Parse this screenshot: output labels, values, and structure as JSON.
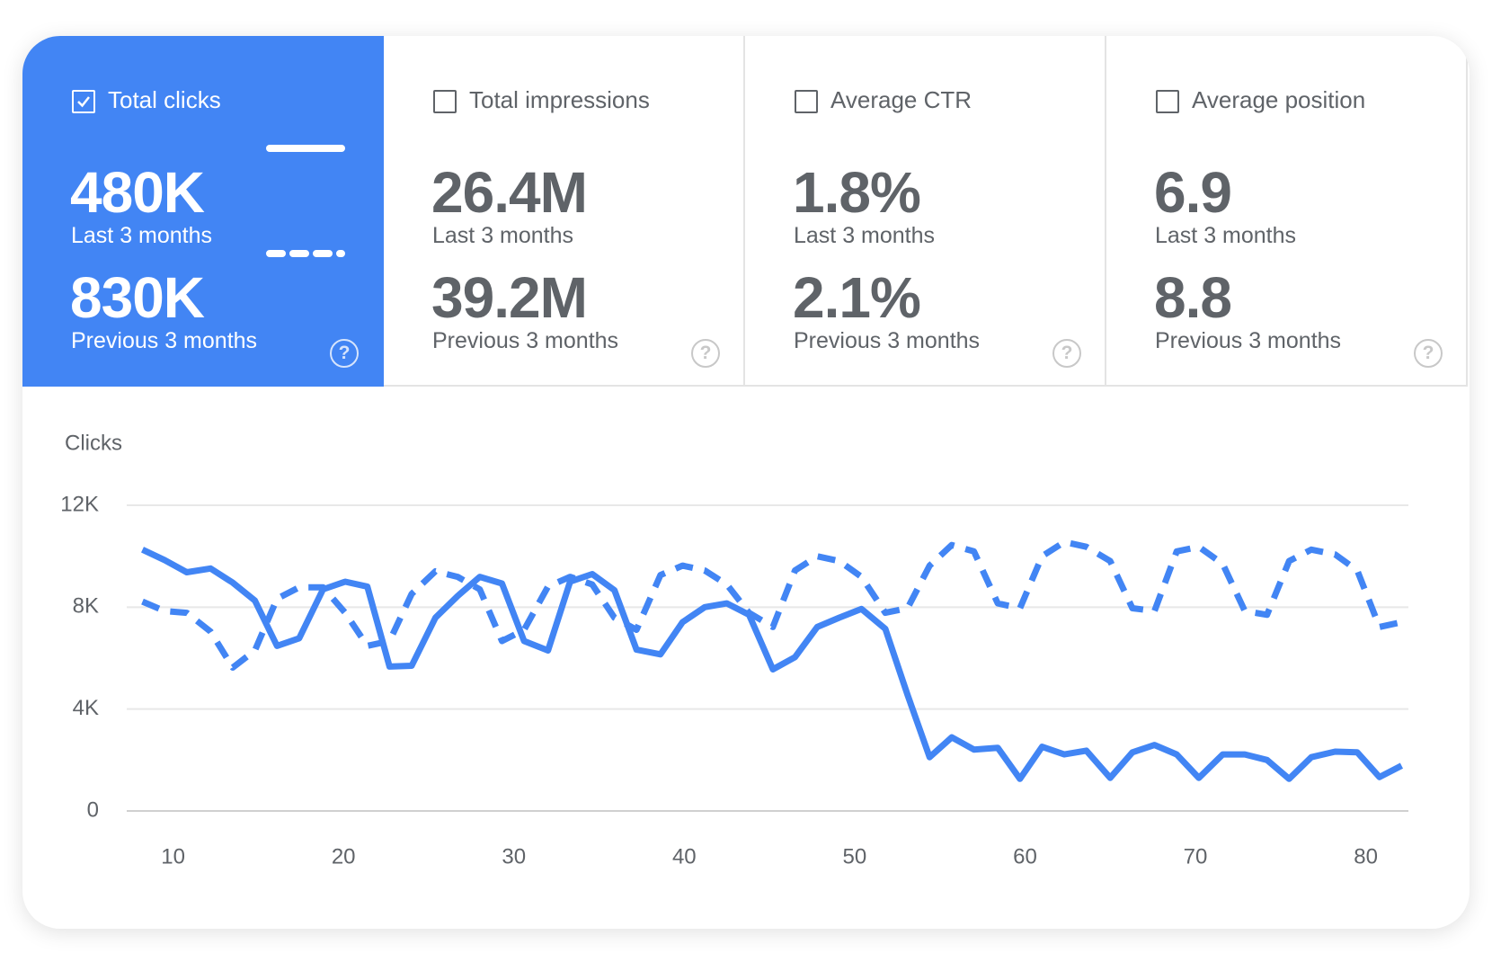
{
  "cards": [
    {
      "label": "Total clicks",
      "current": "480K",
      "current_label": "Last 3 months",
      "previous": "830K",
      "previous_label": "Previous 3 months",
      "selected": true
    },
    {
      "label": "Total impressions",
      "current": "26.4M",
      "current_label": "Last 3 months",
      "previous": "39.2M",
      "previous_label": "Previous 3 months",
      "selected": false
    },
    {
      "label": "Average CTR",
      "current": "1.8%",
      "current_label": "Last 3 months",
      "previous": "2.1%",
      "previous_label": "Previous 3 months",
      "selected": false
    },
    {
      "label": "Average position",
      "current": "6.9",
      "current_label": "Last 3 months",
      "previous": "8.8",
      "previous_label": "Previous 3 months",
      "selected": false
    }
  ],
  "chart_data": {
    "type": "line",
    "y_label": "Clicks",
    "x": [
      8.2,
      9.5,
      10.8,
      12.2,
      13.5,
      14.8,
      16.1,
      17.4,
      18.8,
      20.1,
      21.4,
      22.7,
      24.0,
      25.4,
      26.7,
      28.0,
      29.3,
      30.6,
      32.0,
      33.3,
      34.6,
      35.9,
      37.2,
      38.6,
      39.9,
      41.2,
      42.5,
      43.8,
      45.2,
      46.5,
      47.8,
      49.1,
      50.4,
      51.8,
      53.1,
      54.4,
      55.7,
      57.0,
      58.4,
      59.7,
      61.0,
      62.3,
      63.6,
      65.0,
      66.3,
      67.6,
      68.9,
      70.2,
      71.6,
      72.9,
      74.2,
      75.5,
      76.8,
      78.2,
      79.5,
      80.8,
      82.1
    ],
    "series": [
      {
        "color": "#4285f4",
        "dashed": false,
        "values": [
          10260,
          9850,
          9370,
          9520,
          8960,
          8260,
          6480,
          6780,
          8700,
          9000,
          8810,
          5670,
          5700,
          7590,
          8440,
          9190,
          8930,
          6670,
          6300,
          9000,
          9300,
          8670,
          6330,
          6150,
          7410,
          8000,
          8150,
          7700,
          5560,
          6040,
          7220,
          7590,
          7930,
          7150,
          4560,
          2110,
          2890,
          2410,
          2480,
          1260,
          2520,
          2220,
          2370,
          1300,
          2300,
          2590,
          2220,
          1300,
          2220,
          2220,
          2000,
          1260,
          2110,
          2330,
          2300,
          1330,
          1780
        ]
      },
      {
        "color": "#4285f4",
        "dashed": true,
        "values": [
          8220,
          7850,
          7780,
          7040,
          5630,
          6300,
          8330,
          8780,
          8780,
          7780,
          6480,
          6670,
          8520,
          9410,
          9190,
          8700,
          6670,
          7110,
          8810,
          9190,
          8890,
          7590,
          7110,
          9260,
          9630,
          9440,
          8890,
          7780,
          7220,
          9440,
          10000,
          9810,
          9190,
          7780,
          7960,
          9630,
          10440,
          10190,
          8150,
          7960,
          10000,
          10560,
          10370,
          9810,
          7960,
          7850,
          10190,
          10370,
          9700,
          7850,
          7700,
          9810,
          10260,
          10070,
          9440,
          7220,
          7410
        ]
      }
    ],
    "xlim": [
      7.7,
      82.5
    ],
    "xticks": [
      10,
      20,
      30,
      40,
      50,
      60,
      70,
      80
    ],
    "ylim": [
      0,
      12000
    ],
    "yticks": [
      0,
      {
        "value": 4000,
        "label": "4K"
      },
      {
        "value": 8000,
        "label": "8K"
      },
      {
        "value": 12000,
        "label": "12K"
      }
    ],
    "grid": true
  }
}
